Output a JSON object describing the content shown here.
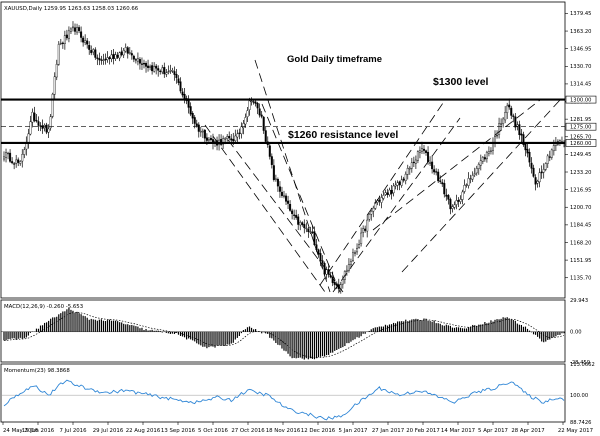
{
  "chart_data": [
    {
      "type": "candlestick",
      "header": "XAUUSD,Daily  1259.95 1263.63 1258.03 1260.66",
      "ylim": [
        1117.0,
        1390.0
      ],
      "ticks": [
        "1379.45",
        "1363.20",
        "1346.95",
        "1330.70",
        "1314.45",
        "1298.20",
        "1281.95",
        "1265.70",
        "1249.45",
        "1233.20",
        "1216.95",
        "1200.70",
        "1184.45",
        "1168.20",
        "1151.95",
        "1135.70"
      ],
      "price_tags": [
        "1300.00",
        "1275.00",
        "1260.00"
      ],
      "levels": [
        {
          "label": "$1300 level",
          "value": 1300
        },
        {
          "label": "$1260 resistance level",
          "value": 1260
        }
      ],
      "dashed_level": 1275,
      "annotations": [
        "Gold Daily timeframe"
      ],
      "x_labels": [
        "24 May 2016",
        "15 Jun 2016",
        "7 Jul 2016",
        "29 Jul 2016",
        "22 Aug 2016",
        "13 Sep 2016",
        "5 Oct 2016",
        "27 Oct 2016",
        "18 Nov 2016",
        "12 Dec 2016",
        "5 Jan 2017",
        "27 Jan 2017",
        "20 Feb 2017",
        "14 Mar 2017",
        "5 Apr 2017",
        "28 Apr 2017",
        "22 May 2017"
      ],
      "close_anchors": [
        {
          "bar": 0,
          "close": 1250
        },
        {
          "bar": 8,
          "close": 1240
        },
        {
          "bar": 14,
          "close": 1285
        },
        {
          "bar": 22,
          "close": 1270
        },
        {
          "bar": 27,
          "close": 1350
        },
        {
          "bar": 35,
          "close": 1366
        },
        {
          "bar": 47,
          "close": 1335
        },
        {
          "bar": 60,
          "close": 1345
        },
        {
          "bar": 72,
          "close": 1330
        },
        {
          "bar": 84,
          "close": 1323
        },
        {
          "bar": 95,
          "close": 1275
        },
        {
          "bar": 103,
          "close": 1260
        },
        {
          "bar": 115,
          "close": 1265
        },
        {
          "bar": 122,
          "close": 1302
        },
        {
          "bar": 127,
          "close": 1283
        },
        {
          "bar": 133,
          "close": 1228
        },
        {
          "bar": 143,
          "close": 1190
        },
        {
          "bar": 152,
          "close": 1175
        },
        {
          "bar": 158,
          "close": 1142
        },
        {
          "bar": 165,
          "close": 1128
        },
        {
          "bar": 173,
          "close": 1160
        },
        {
          "bar": 183,
          "close": 1205
        },
        {
          "bar": 195,
          "close": 1222
        },
        {
          "bar": 206,
          "close": 1255
        },
        {
          "bar": 214,
          "close": 1228
        },
        {
          "bar": 221,
          "close": 1198
        },
        {
          "bar": 232,
          "close": 1235
        },
        {
          "bar": 240,
          "close": 1255
        },
        {
          "bar": 248,
          "close": 1295
        },
        {
          "bar": 255,
          "close": 1265
        },
        {
          "bar": 262,
          "close": 1224
        },
        {
          "bar": 271,
          "close": 1258
        },
        {
          "bar": 276,
          "close": 1261
        }
      ]
    },
    {
      "type": "macd",
      "header": "MACD(12,26,9) -0.260 -5.653",
      "ylim": [
        -28.459,
        29.943
      ],
      "ticks": [
        "29.943",
        "0.00",
        "-28.459"
      ],
      "anchors": [
        {
          "bar": 0,
          "value": -8
        },
        {
          "bar": 10,
          "value": -6
        },
        {
          "bar": 20,
          "value": 8
        },
        {
          "bar": 32,
          "value": 22
        },
        {
          "bar": 42,
          "value": 12
        },
        {
          "bar": 55,
          "value": 10
        },
        {
          "bar": 70,
          "value": 2
        },
        {
          "bar": 85,
          "value": -2
        },
        {
          "bar": 100,
          "value": -15
        },
        {
          "bar": 112,
          "value": -12
        },
        {
          "bar": 120,
          "value": 5
        },
        {
          "bar": 130,
          "value": -3
        },
        {
          "bar": 142,
          "value": -24
        },
        {
          "bar": 152,
          "value": -26
        },
        {
          "bar": 162,
          "value": -20
        },
        {
          "bar": 172,
          "value": -8
        },
        {
          "bar": 182,
          "value": 3
        },
        {
          "bar": 195,
          "value": 10
        },
        {
          "bar": 208,
          "value": 12
        },
        {
          "bar": 218,
          "value": 6
        },
        {
          "bar": 226,
          "value": 3
        },
        {
          "bar": 238,
          "value": 9
        },
        {
          "bar": 248,
          "value": 14
        },
        {
          "bar": 258,
          "value": 3
        },
        {
          "bar": 266,
          "value": -10
        },
        {
          "bar": 276,
          "value": -1
        }
      ]
    },
    {
      "type": "line",
      "header": "Momentum(23) 98.3868",
      "ylim": [
        88.7426,
        113.0662
      ],
      "ticks": [
        "113.0662",
        "100.00",
        "88.7426"
      ],
      "anchors": [
        {
          "bar": 0,
          "value": 96
        },
        {
          "bar": 8,
          "value": 101
        },
        {
          "bar": 15,
          "value": 104
        },
        {
          "bar": 22,
          "value": 100
        },
        {
          "bar": 30,
          "value": 106
        },
        {
          "bar": 40,
          "value": 103
        },
        {
          "bar": 50,
          "value": 101
        },
        {
          "bar": 60,
          "value": 102
        },
        {
          "bar": 72,
          "value": 100
        },
        {
          "bar": 85,
          "value": 98
        },
        {
          "bar": 95,
          "value": 97
        },
        {
          "bar": 105,
          "value": 99
        },
        {
          "bar": 112,
          "value": 98
        },
        {
          "bar": 120,
          "value": 102
        },
        {
          "bar": 130,
          "value": 100
        },
        {
          "bar": 140,
          "value": 94
        },
        {
          "bar": 150,
          "value": 92
        },
        {
          "bar": 158,
          "value": 90
        },
        {
          "bar": 166,
          "value": 91
        },
        {
          "bar": 175,
          "value": 97
        },
        {
          "bar": 185,
          "value": 103
        },
        {
          "bar": 195,
          "value": 100
        },
        {
          "bar": 205,
          "value": 102
        },
        {
          "bar": 215,
          "value": 99
        },
        {
          "bar": 222,
          "value": 97
        },
        {
          "bar": 232,
          "value": 101
        },
        {
          "bar": 242,
          "value": 103
        },
        {
          "bar": 250,
          "value": 106
        },
        {
          "bar": 258,
          "value": 100
        },
        {
          "bar": 266,
          "value": 97
        },
        {
          "bar": 272,
          "value": 99
        },
        {
          "bar": 276,
          "value": 98.3868
        }
      ]
    }
  ]
}
